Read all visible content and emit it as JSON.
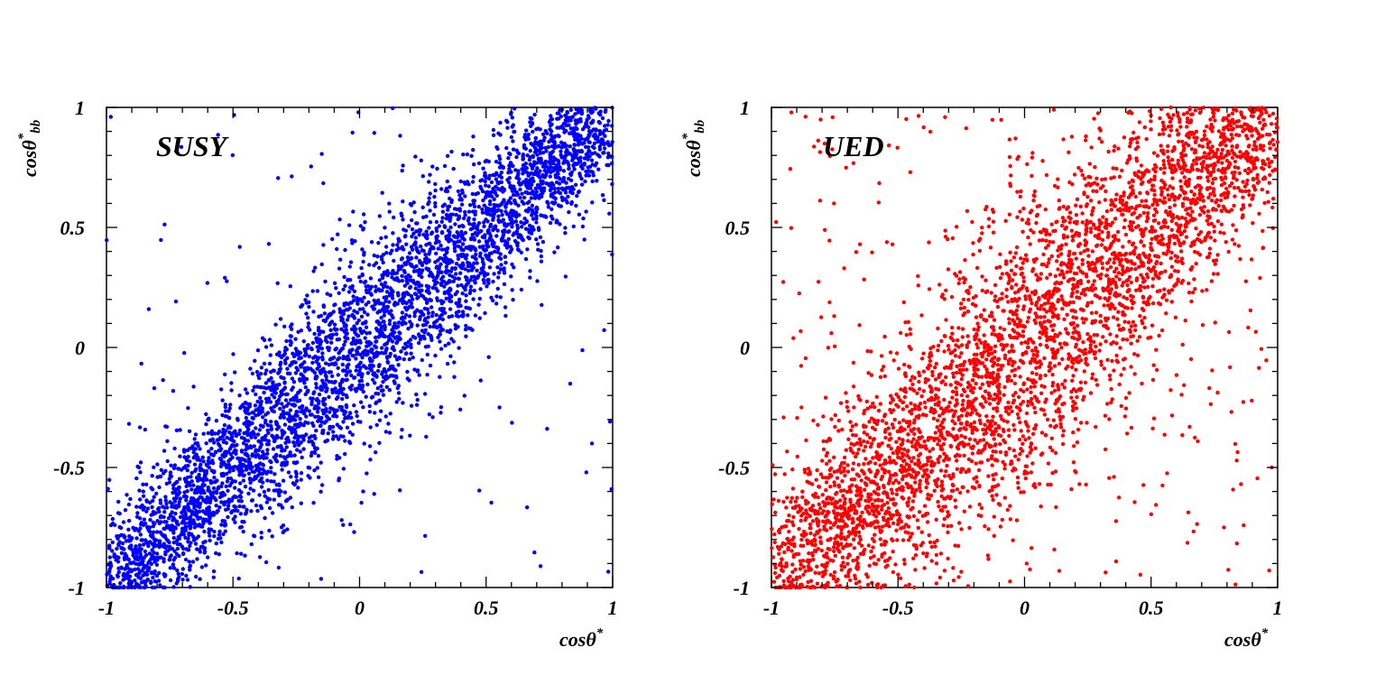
{
  "chart_data": [
    {
      "type": "scatter",
      "panel_label": "SUSY",
      "xlabel_parts": [
        "cosθ",
        "*",
        ""
      ],
      "ylabel_parts": [
        "cosθ",
        "*",
        "bb"
      ],
      "xlim": [
        -1,
        1
      ],
      "ylim": [
        -1,
        1
      ],
      "x_ticks": [
        -1,
        -0.5,
        0,
        0.5,
        1
      ],
      "y_ticks": [
        -1,
        -0.5,
        0,
        0.5,
        1
      ],
      "x_tick_labels": [
        "-1",
        "-0.5",
        "0",
        "0.5",
        "1"
      ],
      "y_tick_labels": [
        "-1",
        "-0.5",
        "0",
        "0.5",
        "1"
      ],
      "marker_color": "#0000ff",
      "grid": false,
      "distribution": {
        "description_of_points": "correlated band along diagonal y≈x, narrow, dense near (1,1) and (-1,-1)",
        "n_points": 4500,
        "correlation_spread": 0.22,
        "outlier_fraction": 0.03,
        "axis_row_points_at_y_min": true
      }
    },
    {
      "type": "scatter",
      "panel_label": "UED",
      "xlabel_parts": [
        "cosθ",
        "*",
        ""
      ],
      "ylabel_parts": [
        "cosθ",
        "*",
        "bb"
      ],
      "xlim": [
        -1,
        1
      ],
      "ylim": [
        -1,
        1
      ],
      "x_ticks": [
        -1,
        -0.5,
        0,
        0.5,
        1
      ],
      "y_ticks": [
        -1,
        -0.5,
        0,
        0.5,
        1
      ],
      "x_tick_labels": [
        "-1",
        "-0.5",
        "0",
        "0.5",
        "1"
      ],
      "y_tick_labels": [
        "-1",
        "-0.5",
        "0",
        "0.5",
        "1"
      ],
      "marker_color": "#ff0000",
      "grid": false,
      "distribution": {
        "description_of_points": "correlated band along diagonal y≈x, wider, dense near (1,1) and (-1,-1)",
        "n_points": 4500,
        "correlation_spread": 0.32,
        "outlier_fraction": 0.06,
        "axis_row_points_at_y_min": true
      }
    }
  ]
}
